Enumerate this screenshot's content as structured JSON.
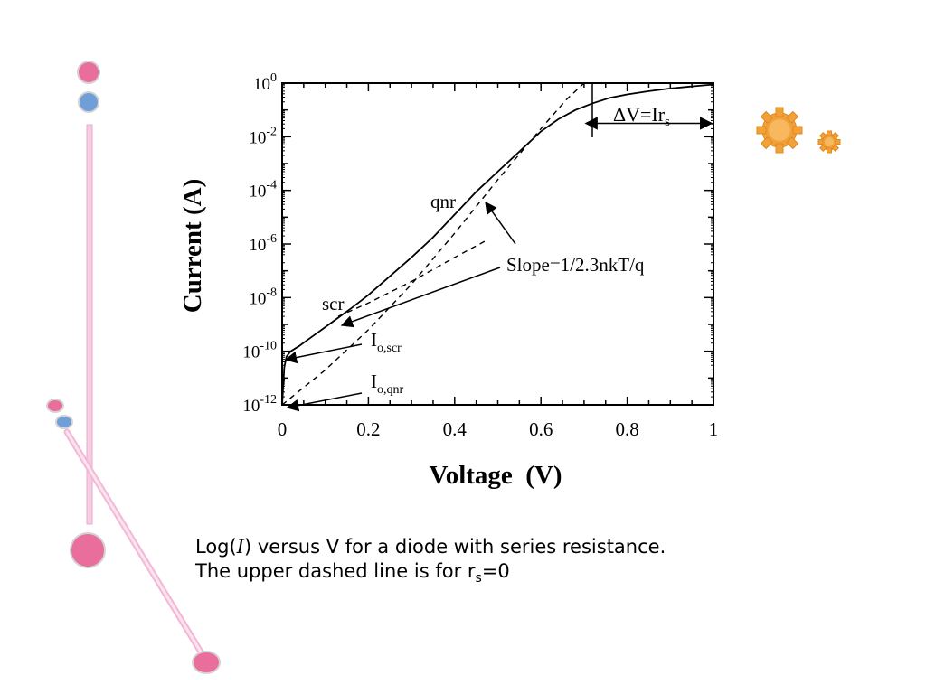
{
  "slide": {
    "caption": {
      "line1_pre": "Log(",
      "line1_var": "I",
      "line1_post": ") versus V for a diode with series resistance.",
      "line2_pre": "The upper dashed line is for r",
      "line2_sub": "s",
      "line2_post": "=0"
    },
    "decor": {
      "colors": {
        "pink": "#ea6e9c",
        "blue": "#6f9fd6",
        "bar": "#f6cde3",
        "gear": "#f2a13a"
      }
    }
  },
  "chart_data": {
    "type": "line",
    "title": "",
    "xlabel": "Voltage  (V)",
    "ylabel": "Current (A)",
    "xlim": [
      0,
      1
    ],
    "ylim_exp": [
      -12,
      0
    ],
    "y_scale": "log",
    "grid": false,
    "x_ticks": [
      {
        "value": 0,
        "label": "0"
      },
      {
        "value": 0.2,
        "label": "0.2"
      },
      {
        "value": 0.4,
        "label": "0.4"
      },
      {
        "value": 0.6,
        "label": "0.6"
      },
      {
        "value": 0.8,
        "label": "0.8"
      },
      {
        "value": 1,
        "label": "1"
      }
    ],
    "y_ticks": [
      {
        "exp": 0,
        "base": "10",
        "sup": "0"
      },
      {
        "exp": -2,
        "base": "10",
        "sup": "-2"
      },
      {
        "exp": -4,
        "base": "10",
        "sup": "-4"
      },
      {
        "exp": -6,
        "base": "10",
        "sup": "-6"
      },
      {
        "exp": -8,
        "base": "10",
        "sup": "-8"
      },
      {
        "exp": -10,
        "base": "10",
        "sup": "-10"
      },
      {
        "exp": -12,
        "base": "10",
        "sup": "-12"
      }
    ],
    "series": [
      {
        "style": "solid",
        "x": [
          0,
          0.005,
          0.01,
          0.02,
          0.04,
          0.07,
          0.1,
          0.13,
          0.16,
          0.2,
          0.25,
          0.3,
          0.35,
          0.4,
          0.45,
          0.5,
          0.55,
          0.6,
          0.64,
          0.68,
          0.72,
          0.76,
          0.8,
          0.85,
          0.9,
          0.95,
          1.0
        ],
        "log10_y": [
          -12,
          -10.6,
          -10.2,
          -10.0,
          -9.8,
          -9.45,
          -9.1,
          -8.75,
          -8.4,
          -7.9,
          -7.2,
          -6.5,
          -5.75,
          -4.9,
          -4.05,
          -3.3,
          -2.55,
          -1.8,
          -1.35,
          -1.0,
          -0.75,
          -0.55,
          -0.42,
          -0.3,
          -0.2,
          -0.12,
          -0.05
        ]
      },
      {
        "style": "dashed",
        "x": [
          0,
          0.1,
          0.2,
          0.3,
          0.4,
          0.5,
          0.6,
          0.66,
          0.7
        ],
        "log10_y": [
          -12,
          -10.7,
          -9.2,
          -7.5,
          -5.6,
          -3.6,
          -1.7,
          -0.6,
          0
        ]
      },
      {
        "style": "dashed",
        "x": [
          0.13,
          0.2,
          0.3,
          0.4,
          0.47
        ],
        "log10_y": [
          -8.7,
          -8.2,
          -7.4,
          -6.5,
          -5.9
        ]
      }
    ],
    "annotations": {
      "delta_v": {
        "pre": "ΔV=Ir",
        "sub": "s",
        "x0": 0.7,
        "x1": 1.0,
        "log10_y": -1.5
      },
      "qnr": {
        "text": "qnr"
      },
      "scr": {
        "text": "scr"
      },
      "slope": {
        "text": "Slope=1/2.3nkT/q"
      },
      "io_scr": {
        "base": "I",
        "sub": "o,scr"
      },
      "io_qnr": {
        "base": "I",
        "sub": "o,qnr"
      }
    }
  }
}
